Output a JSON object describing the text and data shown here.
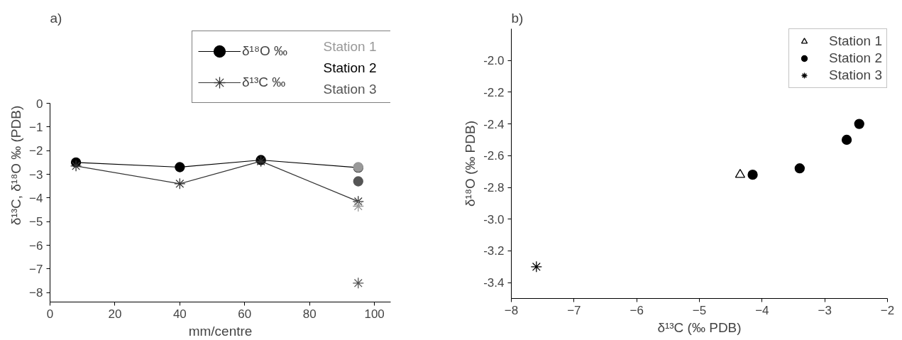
{
  "chart_data": [
    {
      "type": "line",
      "title": "a)",
      "xlabel": "mm/centre",
      "ylabel": "δ¹³C, δ¹⁸O ‰ (PDB)",
      "xlim": [
        0,
        105
      ],
      "xticks": [
        0,
        20,
        40,
        60,
        80,
        100
      ],
      "ylim": [
        -8.4,
        0
      ],
      "yticks": [
        0,
        -1,
        -2,
        -3,
        -4,
        -5,
        -6,
        -7,
        -8
      ],
      "legend": "top right",
      "series": [
        {
          "name": "δ¹⁸O ‰",
          "type": "line",
          "marker": "circle",
          "color": "#000000",
          "x": [
            8,
            40,
            65,
            95
          ],
          "values": [
            -2.5,
            -2.7,
            -2.4,
            -2.72
          ]
        },
        {
          "name": "δ¹³C ‰",
          "type": "line",
          "marker": "cross",
          "color": "#333333",
          "x": [
            8,
            40,
            65,
            95
          ],
          "values": [
            -2.65,
            -3.4,
            -2.45,
            -4.15
          ]
        },
        {
          "name": "Station 1",
          "type": "scatter",
          "marker": "circle",
          "color": "#999999",
          "x": [
            95
          ],
          "values": [
            -2.7
          ]
        },
        {
          "type": "scatter",
          "marker": "cross",
          "color": "#999999",
          "x": [
            95
          ],
          "values": [
            -4.35
          ]
        },
        {
          "name": "Station 2",
          "type": "scatter",
          "color": "#000000"
        },
        {
          "name": "Station 3",
          "type": "scatter",
          "marker": "circle",
          "color": "#555555",
          "x": [
            95
          ],
          "values": [
            -3.3
          ]
        },
        {
          "type": "scatter",
          "marker": "cross",
          "color": "#555555",
          "x": [
            95
          ],
          "values": [
            -7.6
          ]
        }
      ]
    },
    {
      "type": "scatter",
      "title": "b)",
      "xlabel": "δ¹³C (‰ PDB)",
      "ylabel": "δ¹⁸O (‰ PDB)",
      "xlim": [
        -8,
        -2
      ],
      "xticks": [
        -8,
        -7,
        -6,
        -5,
        -4,
        -3,
        -2
      ],
      "ylim": [
        -3.5,
        -1.8
      ],
      "yticks": [
        {
          "value": -2.0,
          "label": "-2.0"
        },
        {
          "value": -2.2,
          "label": "-2.2"
        },
        {
          "value": -2.4,
          "label": "-2.4"
        },
        {
          "value": -2.6,
          "label": "-2.6"
        },
        {
          "value": -2.8,
          "label": "-2.8"
        },
        {
          "value": -3.0,
          "label": "-3.0"
        },
        {
          "value": -3.2,
          "label": "-3.2"
        },
        {
          "value": -3.4,
          "label": "-3.4"
        }
      ],
      "legend": "top right",
      "series": [
        {
          "name": "Station 1",
          "marker": "triangle",
          "color": "#000000",
          "x": [
            -4.35
          ],
          "values": [
            -2.72
          ]
        },
        {
          "name": "Station 2",
          "marker": "circle",
          "color": "#000000",
          "x": [
            -2.45,
            -2.65,
            -3.4,
            -4.15
          ],
          "values": [
            -2.4,
            -2.5,
            -2.68,
            -2.72
          ]
        },
        {
          "name": "Station 3",
          "marker": "cross",
          "color": "#000000",
          "x": [
            -7.6
          ],
          "values": [
            -3.3
          ]
        }
      ]
    }
  ]
}
